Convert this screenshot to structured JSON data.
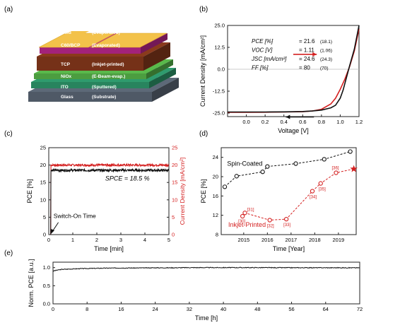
{
  "panels": {
    "a": {
      "label": "(a)",
      "layers": [
        {
          "name": "Gold",
          "process": "(Evaporated)",
          "color": "#f3c24a"
        },
        {
          "name": "C60/BCP",
          "process": "(Evaporated)",
          "color": "#c0288f"
        },
        {
          "name": "TCP",
          "process": "(Inkjet-printed)",
          "color": "#8a3a1c"
        },
        {
          "name": "NiOx",
          "process": "(E-Beam-evap.)",
          "color": "#59b94b"
        },
        {
          "name": "ITO",
          "process": "(Sputtered)",
          "color": "#2f9b6e"
        },
        {
          "name": "Glass",
          "process": "(Substrate)",
          "color": "#5d6978"
        }
      ]
    },
    "b": {
      "label": "(b)"
    },
    "c": {
      "label": "(c)"
    },
    "d": {
      "label": "(d)"
    },
    "e": {
      "label": "(e)"
    }
  },
  "chart_data": [
    {
      "id": "b",
      "type": "line",
      "xlabel": "Voltage [V]",
      "ylabel": "Current Density [mA/cm²]",
      "xlim": [
        -0.2,
        1.2
      ],
      "ylim": [
        -27,
        25
      ],
      "xticks": [
        0.0,
        0.2,
        0.4,
        0.6,
        0.8,
        1.0,
        1.2
      ],
      "yticks": [
        -25.0,
        -12.5,
        0.0,
        12.5,
        25.0
      ],
      "xticklabels": [
        "0.0",
        "0.2",
        "0.4",
        "0.6",
        "0.8",
        "1.0",
        "1.2"
      ],
      "yticklabels": [
        "-25.0",
        "-12.5",
        "0.0",
        "12.5",
        "25.0"
      ],
      "params": [
        {
          "label": "PCE [%]",
          "value": "= 21.6",
          "sub": "(18.1)"
        },
        {
          "label": "VOC [V]",
          "value": "= 1.11",
          "sub": "(1.06)"
        },
        {
          "label": "JSC [mA/cm²]",
          "value": "= 24.6",
          "sub": "(24.3)"
        },
        {
          "label": "FF [%]",
          "value": "= 80",
          "sub": "(70)"
        }
      ],
      "series": [
        {
          "color": "#d42020",
          "x": [
            -0.2,
            0.0,
            0.2,
            0.4,
            0.6,
            0.7,
            0.8,
            0.9,
            0.95,
            1.0,
            1.05,
            1.1,
            1.15,
            1.2
          ],
          "y": [
            -24.6,
            -24.6,
            -24.5,
            -24.4,
            -24.2,
            -23.8,
            -22.8,
            -19.8,
            -16.5,
            -11.5,
            -5.5,
            1.5,
            10.5,
            23.0
          ]
        },
        {
          "color": "#111111",
          "x": [
            -0.2,
            0.0,
            0.2,
            0.4,
            0.6,
            0.7,
            0.8,
            0.9,
            0.95,
            1.0,
            1.03,
            1.06,
            1.1,
            1.15,
            1.2
          ],
          "y": [
            -24.4,
            -24.4,
            -24.4,
            -24.3,
            -24.1,
            -23.8,
            -23.3,
            -22.0,
            -20.5,
            -16.5,
            -12.0,
            -6.0,
            2.0,
            11.5,
            25.0
          ]
        }
      ],
      "arrows": [
        {
          "color": "#d42020",
          "direction": "right",
          "x0": 0.5,
          "x1": 0.75,
          "y": 8.5
        },
        {
          "color": "#111111",
          "direction": "left",
          "x0": 0.72,
          "x1": 0.42,
          "y": -27.2
        }
      ]
    },
    {
      "id": "c",
      "type": "line",
      "xlabel": "Time [min]",
      "ylabel": "PCE [%]",
      "ylabel_right": "Current Density [mA/cm²]",
      "xlim": [
        0,
        5
      ],
      "ylim": [
        0,
        25
      ],
      "xticks": [
        0,
        1,
        2,
        3,
        4,
        5
      ],
      "yticks": [
        0,
        5,
        10,
        15,
        20,
        25
      ],
      "xticklabels": [
        "0",
        "1",
        "2",
        "3",
        "4",
        "5"
      ],
      "yticklabels": [
        "0",
        "5",
        "10",
        "15",
        "20",
        "25"
      ],
      "yticklabels_right": [
        "0",
        "5",
        "10",
        "15",
        "20",
        "25"
      ],
      "annotation": "SPCE = 18.5 %",
      "switch_label": "Switch-On Time",
      "series": [
        {
          "name": "Current Density",
          "color": "#d42020",
          "axis": "right",
          "level": 20.0,
          "noise": 0.3
        },
        {
          "name": "PCE",
          "color": "#111111",
          "axis": "left",
          "level": 18.5,
          "noise": 0.35
        }
      ]
    },
    {
      "id": "d",
      "type": "scatter",
      "xlabel": "Time [Year]",
      "ylabel": "PCE [%]",
      "xlim": [
        2014.05,
        2019.75
      ],
      "ylim": [
        8,
        26
      ],
      "xticks": [
        2015,
        2016,
        2017,
        2018,
        2019
      ],
      "yticks": [
        8,
        12,
        16,
        20,
        24
      ],
      "xticklabels": [
        "2015",
        "2016",
        "2017",
        "2018",
        "2019"
      ],
      "yticklabels": [
        "8",
        "12",
        "16",
        "20",
        "24"
      ],
      "series": [
        {
          "name": "Spin-Coated",
          "color": "#111111",
          "x": [
            2014.2,
            2014.7,
            2015.8,
            2016.0,
            2017.2,
            2018.4,
            2019.5
          ],
          "y": [
            17.9,
            20.1,
            21.0,
            22.1,
            22.7,
            23.6,
            25.2
          ]
        },
        {
          "name": "Inkjet-Printed",
          "color": "#d42020",
          "x": [
            2014.95,
            2015.05,
            2016.1,
            2016.8,
            2017.9,
            2018.25,
            2018.9,
            2019.65
          ],
          "y": [
            11.8,
            12.5,
            11.0,
            11.2,
            17.0,
            18.6,
            20.8,
            21.6
          ],
          "refs": [
            "[30]",
            "[31]",
            "[32]",
            "[33]",
            "[34]",
            "[35]",
            "[36]",
            ""
          ],
          "star_last": true
        }
      ]
    },
    {
      "id": "e",
      "type": "line",
      "xlabel": "Time [h]",
      "ylabel": "Norm. PCE [a.u.]",
      "xlim": [
        0,
        72
      ],
      "ylim": [
        0,
        1.15
      ],
      "xticks": [
        0,
        8,
        16,
        24,
        32,
        40,
        48,
        56,
        64,
        72
      ],
      "yticks": [
        0.0,
        0.5,
        1.0
      ],
      "xticklabels": [
        "0",
        "8",
        "16",
        "24",
        "32",
        "40",
        "48",
        "56",
        "64",
        "72"
      ],
      "yticklabels": [
        "0.0",
        "0.5",
        "1.0"
      ],
      "series": [
        {
          "color": "#111111",
          "x": [
            0,
            0.5,
            1,
            2,
            4,
            6,
            8,
            12,
            16,
            20,
            24,
            28,
            32,
            36,
            40,
            44,
            48,
            52,
            56,
            60,
            64,
            68,
            72
          ],
          "y": [
            0.9,
            0.92,
            0.93,
            0.95,
            0.96,
            0.97,
            0.975,
            0.985,
            0.99,
            0.99,
            0.995,
            0.995,
            1.0,
            1.0,
            1.0,
            1.0,
            1.0,
            0.998,
            0.997,
            0.997,
            0.996,
            0.996,
            0.995
          ]
        }
      ]
    }
  ]
}
